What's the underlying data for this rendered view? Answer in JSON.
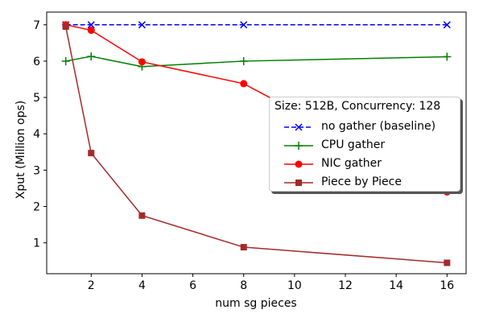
{
  "chart_data": {
    "type": "line",
    "title": "",
    "xlabel": "num sg pieces",
    "ylabel": "Xput (Million ops)",
    "xlim": [
      0.25,
      16.75
    ],
    "ylim": [
      0.15,
      7.35
    ],
    "xticks": [
      2,
      4,
      6,
      8,
      10,
      12,
      14,
      16
    ],
    "yticks": [
      1,
      2,
      3,
      4,
      5,
      6,
      7
    ],
    "grid": false,
    "legend_position": "center-right",
    "legend_title": "Size: 512B, Concurrency: 128",
    "series": [
      {
        "name": "no gather (baseline)",
        "color": "#0000ff",
        "linestyle": "dashed",
        "marker": "x",
        "x": [
          1,
          2,
          4,
          8,
          16
        ],
        "y": [
          7.0,
          7.0,
          7.0,
          7.0,
          7.0
        ]
      },
      {
        "name": "CPU gather",
        "color": "#008000",
        "linestyle": "solid",
        "marker": "plus",
        "x": [
          1,
          2,
          4,
          8,
          16
        ],
        "y": [
          6.0,
          6.13,
          5.85,
          6.0,
          6.12
        ]
      },
      {
        "name": "NIC gather",
        "color": "#ff0000",
        "linestyle": "solid",
        "marker": "circle",
        "x": [
          1,
          2,
          4,
          8,
          16
        ],
        "y": [
          7.0,
          6.85,
          5.98,
          5.38,
          2.4
        ]
      },
      {
        "name": "Piece by Piece",
        "color": "#a52a2a",
        "linestyle": "solid",
        "marker": "square",
        "x": [
          1,
          2,
          4,
          8,
          16
        ],
        "y": [
          6.95,
          3.47,
          1.75,
          0.88,
          0.45
        ]
      }
    ]
  }
}
